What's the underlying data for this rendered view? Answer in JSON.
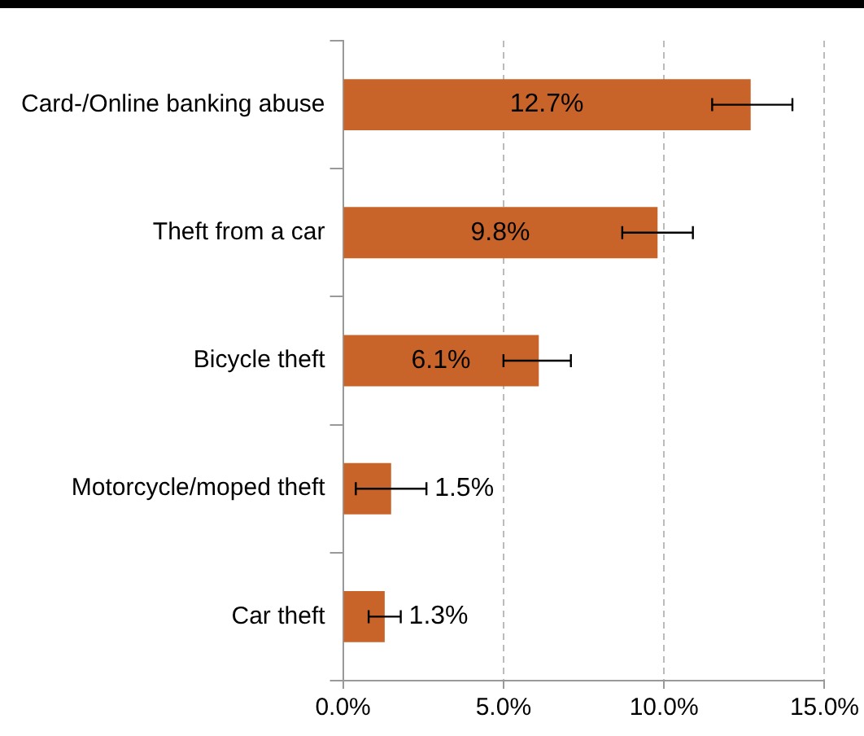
{
  "chart_data": {
    "type": "bar",
    "orientation": "horizontal",
    "categories": [
      "Card-/Online banking abuse",
      "Theft from a car",
      "Bicycle theft",
      "Motorcycle/moped theft",
      "Car theft"
    ],
    "values": [
      12.7,
      9.8,
      6.1,
      1.5,
      1.3
    ],
    "value_labels": [
      "12.7%",
      "9.8%",
      "6.1%",
      "1.5%",
      "1.3%"
    ],
    "errors": [
      [
        11.5,
        14.0
      ],
      [
        8.7,
        10.9
      ],
      [
        5.0,
        7.1
      ],
      [
        0.4,
        2.6
      ],
      [
        0.8,
        1.8
      ]
    ],
    "color": "#c8632a",
    "xlim": [
      0,
      15
    ],
    "xticks": [
      {
        "value": 0,
        "label": "0.0%"
      },
      {
        "value": 5,
        "label": "5.0%"
      },
      {
        "value": 10,
        "label": "10.0%"
      },
      {
        "value": 15,
        "label": "15.0%"
      }
    ],
    "grid": "x"
  }
}
